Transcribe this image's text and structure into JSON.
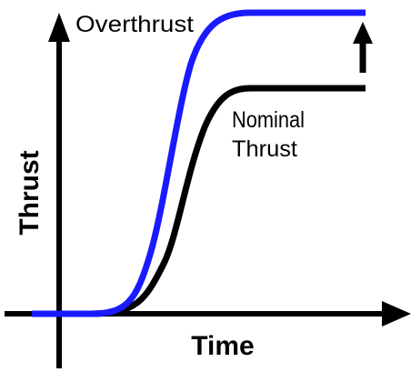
{
  "axes": {
    "y_label": "Thrust",
    "x_label": "Time"
  },
  "curves": [
    {
      "label": "Overthrust"
    },
    {
      "label_lines": [
        "Nominal",
        "Thrust"
      ]
    }
  ]
}
